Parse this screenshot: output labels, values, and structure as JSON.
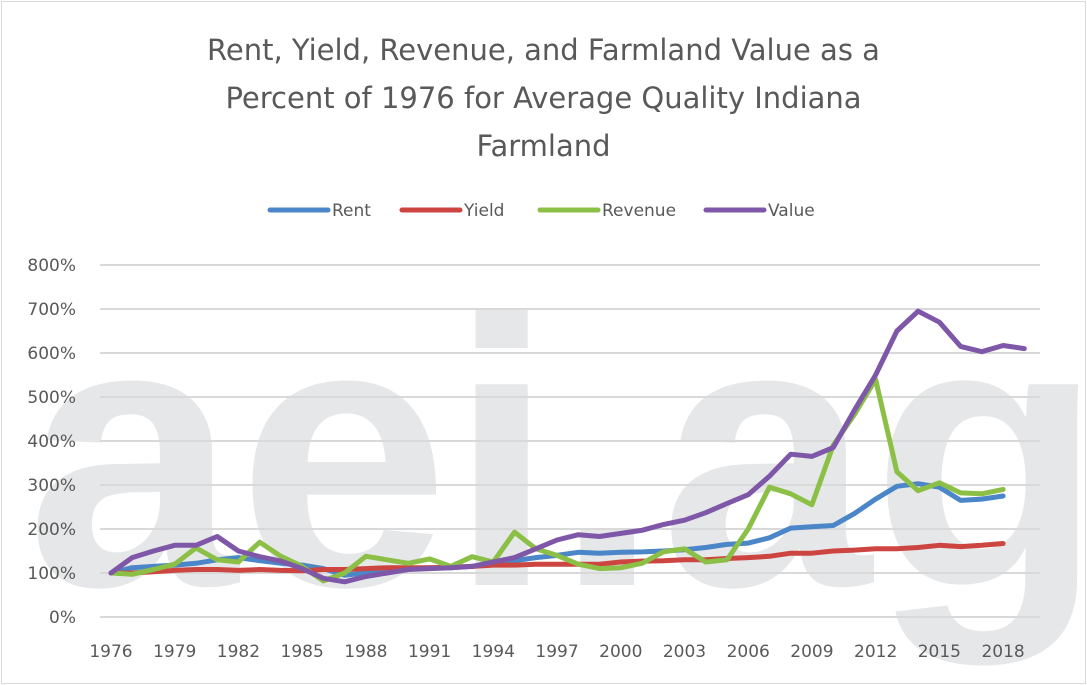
{
  "chart_data": {
    "type": "line",
    "title_lines": [
      "Rent, Yield, Revenue, and Farmland Value as a",
      "Percent of 1976 for Average Quality Indiana",
      "Farmland"
    ],
    "watermark": "aei.ag",
    "xlabel": "",
    "ylabel": "",
    "x_start": 1976,
    "x_tick_labels": [
      "1976",
      "1979",
      "1982",
      "1985",
      "1988",
      "1991",
      "1994",
      "1997",
      "2000",
      "2003",
      "2006",
      "2009",
      "2012",
      "2015",
      "2018"
    ],
    "y_tick_labels": [
      "0%",
      "100%",
      "200%",
      "300%",
      "400%",
      "500%",
      "600%",
      "700%",
      "800%"
    ],
    "ylim": [
      0,
      800
    ],
    "grid": true,
    "legend_position": "top",
    "series": [
      {
        "name": "Rent",
        "color": "#4a86c8",
        "values": [
          100,
          112,
          115,
          118,
          122,
          130,
          135,
          128,
          122,
          118,
          110,
          95,
          100,
          105,
          110,
          112,
          112,
          115,
          120,
          128,
          135,
          140,
          147,
          145,
          147,
          148,
          150,
          153,
          158,
          165,
          168,
          180,
          202,
          205,
          208,
          235,
          268,
          297,
          303,
          295,
          265,
          268,
          275
        ]
      },
      {
        "name": "Yield",
        "color": "#cc4540",
        "values": [
          100,
          100,
          103,
          106,
          108,
          108,
          106,
          108,
          106,
          105,
          108,
          108,
          110,
          112,
          112,
          112,
          113,
          115,
          118,
          118,
          120,
          120,
          120,
          120,
          125,
          127,
          128,
          130,
          130,
          133,
          135,
          138,
          145,
          145,
          150,
          152,
          155,
          155,
          158,
          163,
          160,
          163,
          167
        ]
      },
      {
        "name": "Revenue",
        "color": "#8cbf45",
        "values": [
          100,
          97,
          108,
          120,
          157,
          130,
          125,
          170,
          138,
          115,
          82,
          100,
          138,
          130,
          122,
          132,
          115,
          137,
          125,
          193,
          155,
          140,
          120,
          110,
          112,
          122,
          148,
          155,
          125,
          130,
          200,
          295,
          280,
          255,
          390,
          460,
          540,
          330,
          287,
          305,
          282,
          280,
          290
        ]
      },
      {
        "name": "Value",
        "color": "#7e57a8",
        "values": [
          100,
          135,
          150,
          163,
          163,
          183,
          150,
          137,
          127,
          110,
          88,
          80,
          92,
          100,
          108,
          110,
          112,
          115,
          125,
          135,
          155,
          175,
          187,
          183,
          190,
          197,
          210,
          220,
          237,
          258,
          278,
          320,
          370,
          365,
          385,
          470,
          550,
          650,
          695,
          670,
          615,
          603,
          617,
          610
        ]
      }
    ]
  }
}
